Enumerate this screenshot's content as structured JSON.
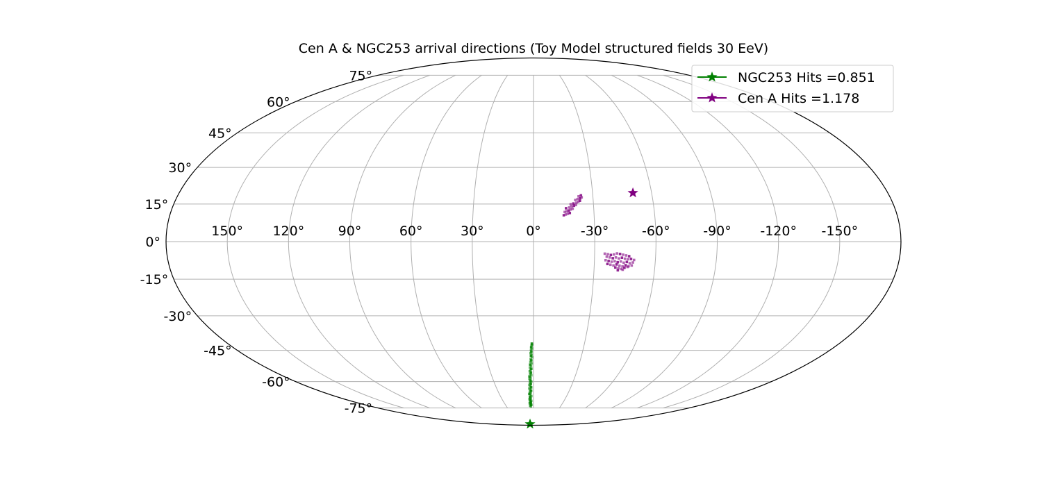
{
  "chart_data": {
    "type": "scatter",
    "projection": "mollweide",
    "title": "Cen A & NGC253 arrival directions (Toy Model structured fields 30 EeV)",
    "xlabel": "",
    "ylabel": "",
    "xlim": [
      180,
      -180
    ],
    "ylim": [
      -90,
      90
    ],
    "grid": true,
    "legend_position": "top-right",
    "lon_ticks": [
      "150°",
      "120°",
      "90°",
      "60°",
      "30°",
      "0°",
      "-30°",
      "-60°",
      "-90°",
      "-120°",
      "-150°"
    ],
    "lat_ticks": [
      "75°",
      "60°",
      "45°",
      "30°",
      "15°",
      "0°",
      "-15°",
      "-30°",
      "-45°",
      "-60°",
      "-75°"
    ],
    "series": [
      {
        "name": "NGC253 Hits =0.851",
        "color": "#008000",
        "marker": "star",
        "source": [
          15,
          -88
        ],
        "arrival_points": [
          [
            1,
            -42
          ],
          [
            0.9,
            -42.5
          ],
          [
            1.2,
            -43
          ],
          [
            1.4,
            -43.7
          ],
          [
            1,
            -44.2
          ],
          [
            1.5,
            -45
          ],
          [
            1.3,
            -45.6
          ],
          [
            1.8,
            -46.3
          ],
          [
            1.2,
            -47
          ],
          [
            1.6,
            -47.5
          ],
          [
            1,
            -48.2
          ],
          [
            1.8,
            -49
          ],
          [
            1.4,
            -49.6
          ],
          [
            2,
            -50.3
          ],
          [
            1.2,
            -51
          ],
          [
            2.2,
            -51.6
          ],
          [
            1.6,
            -52.3
          ],
          [
            2.4,
            -53
          ],
          [
            1.5,
            -53.6
          ],
          [
            2,
            -54.2
          ],
          [
            2.6,
            -54.8
          ],
          [
            1.8,
            -55.5
          ],
          [
            2.4,
            -56.1
          ],
          [
            1.6,
            -56.8
          ],
          [
            2.9,
            -57.4
          ],
          [
            2.1,
            -58.1
          ],
          [
            3,
            -58.7
          ],
          [
            2.3,
            -59.4
          ],
          [
            1.7,
            -60
          ],
          [
            2.8,
            -60.6
          ],
          [
            2.1,
            -61.2
          ],
          [
            3.2,
            -61.8
          ],
          [
            2.5,
            -62.4
          ],
          [
            1.9,
            -63
          ],
          [
            3.4,
            -63.6
          ],
          [
            2.7,
            -64.2
          ],
          [
            2,
            -64.8
          ],
          [
            3.1,
            -65.4
          ],
          [
            2.4,
            -66
          ],
          [
            3.6,
            -66.6
          ],
          [
            2.8,
            -67.2
          ],
          [
            2,
            -67.8
          ],
          [
            3.3,
            -68.4
          ],
          [
            2.6,
            -69
          ],
          [
            3.8,
            -69.6
          ],
          [
            3,
            -70
          ],
          [
            2.2,
            -70.6
          ],
          [
            3.5,
            -71.1
          ],
          [
            2.7,
            -71.6
          ],
          [
            3.9,
            -72
          ],
          [
            3.2,
            -72.5
          ],
          [
            2.4,
            -73
          ],
          [
            3.6,
            -73.5
          ],
          [
            2.9,
            -74
          ]
        ]
      },
      {
        "name": "Cen A Hits =1.178",
        "color": "#800080",
        "marker": "star",
        "source": [
          -50.5,
          19.5
        ],
        "arrival_points": [
          [
            -15,
            10.5
          ],
          [
            -16,
            10.8
          ],
          [
            -17,
            11.1
          ],
          [
            -18,
            11.4
          ],
          [
            -15.5,
            11.8
          ],
          [
            -16.5,
            12.1
          ],
          [
            -17.5,
            12.4
          ],
          [
            -18.5,
            12.8
          ],
          [
            -19.5,
            13.1
          ],
          [
            -16.2,
            13.3
          ],
          [
            -17.8,
            13.6
          ],
          [
            -19,
            14
          ],
          [
            -20.2,
            14.3
          ],
          [
            -21.2,
            14.6
          ],
          [
            -18.6,
            14.9
          ],
          [
            -20,
            15.2
          ],
          [
            -21.5,
            15.5
          ],
          [
            -22.5,
            15.9
          ],
          [
            -23.3,
            16.3
          ],
          [
            -21,
            16.6
          ],
          [
            -22.2,
            17
          ],
          [
            -23.5,
            17.3
          ],
          [
            -24.3,
            17.7
          ],
          [
            -22.8,
            18.1
          ],
          [
            -24,
            18.5
          ],
          [
            -35,
            -4.8
          ],
          [
            -36.5,
            -5
          ],
          [
            -38,
            -5.3
          ],
          [
            -39.5,
            -5.1
          ],
          [
            -41,
            -4.7
          ],
          [
            -42.5,
            -4.9
          ],
          [
            -44,
            -5.2
          ],
          [
            -45.5,
            -5.5
          ],
          [
            -47,
            -5.8
          ],
          [
            -36,
            -6
          ],
          [
            -37.5,
            -6.3
          ],
          [
            -39,
            -6.6
          ],
          [
            -40.5,
            -6.3
          ],
          [
            -42,
            -6.7
          ],
          [
            -43.5,
            -6.4
          ],
          [
            -45,
            -6.8
          ],
          [
            -46.5,
            -7
          ],
          [
            -48,
            -6.9
          ],
          [
            -49.5,
            -7.3
          ],
          [
            -35.5,
            -7.4
          ],
          [
            -37,
            -7.7
          ],
          [
            -38.5,
            -8
          ],
          [
            -40,
            -7.8
          ],
          [
            -41.5,
            -8.2
          ],
          [
            -43,
            -7.9
          ],
          [
            -44.5,
            -8.4
          ],
          [
            -46,
            -8.1
          ],
          [
            -47.5,
            -8.6
          ],
          [
            -49,
            -8.3
          ],
          [
            -36.5,
            -8.9
          ],
          [
            -38,
            -9.2
          ],
          [
            -39.5,
            -9.5
          ],
          [
            -41,
            -9.1
          ],
          [
            -42.5,
            -9.6
          ],
          [
            -44,
            -9.9
          ],
          [
            -45.5,
            -9.4
          ],
          [
            -47,
            -9.8
          ],
          [
            -48.5,
            -9.5
          ],
          [
            -40.5,
            -10.3
          ],
          [
            -42,
            -10.6
          ],
          [
            -43.5,
            -10.9
          ],
          [
            -45,
            -10.4
          ],
          [
            -46.5,
            -10.1
          ],
          [
            -44.2,
            -11.2
          ],
          [
            -41.8,
            -11.4
          ]
        ]
      }
    ]
  }
}
